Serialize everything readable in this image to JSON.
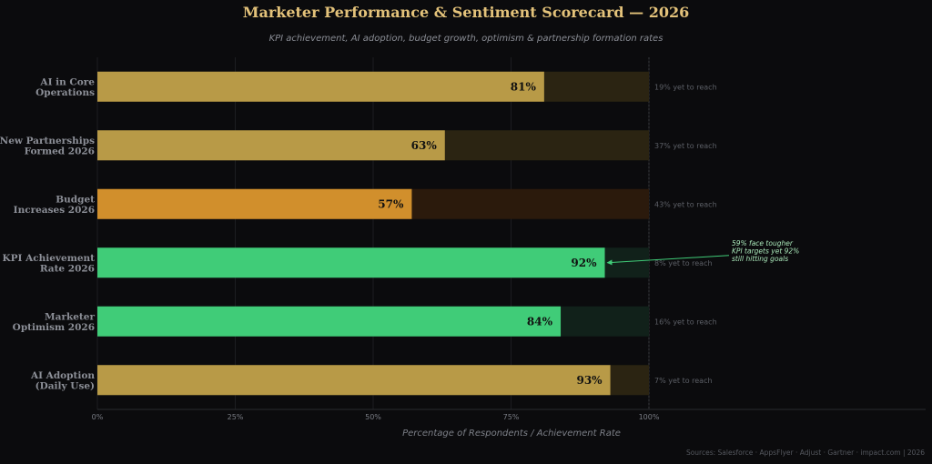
{
  "chart_data": {
    "type": "bar",
    "orientation": "horizontal",
    "title": "Marketer Performance & Sentiment Scorecard — 2026",
    "subtitle": "KPI achievement, AI adoption, budget growth, optimism & partnership formation rates",
    "xlabel": "Percentage of Respondents / Achievement Rate",
    "xlim": [
      0,
      100
    ],
    "xticks": [
      "0%",
      "25%",
      "50%",
      "75%",
      "100%"
    ],
    "grid": true,
    "categories": [
      {
        "lines": [
          "AI in Core",
          "Operations"
        ],
        "value": 81,
        "label": "81%",
        "remaining": "19% yet to reach",
        "color": "#b89a47",
        "track": "#2b2412"
      },
      {
        "lines": [
          "New Partnerships",
          "Formed 2026"
        ],
        "value": 63,
        "label": "63%",
        "remaining": "37% yet to reach",
        "color": "#b89a47",
        "track": "#2b2412"
      },
      {
        "lines": [
          "Budget",
          "Increases 2026"
        ],
        "value": 57,
        "label": "57%",
        "remaining": "43% yet to reach",
        "color": "#d18f2c",
        "track": "#2b1a0c"
      },
      {
        "lines": [
          "KPI Achievement",
          "Rate 2026"
        ],
        "value": 92,
        "label": "92%",
        "remaining": "8% yet to reach",
        "color": "#40cc78",
        "track": "#11211a"
      },
      {
        "lines": [
          "Marketer",
          "Optimism 2026"
        ],
        "value": 84,
        "label": "84%",
        "remaining": "16% yet to reach",
        "color": "#40cc78",
        "track": "#11211a"
      },
      {
        "lines": [
          "AI Adoption",
          "(Daily Use)"
        ],
        "value": 93,
        "label": "93%",
        "remaining": "7% yet to reach",
        "color": "#b89a47",
        "track": "#2b2412"
      }
    ],
    "annotation": {
      "lines": [
        "59% face tougher",
        "KPI targets yet 92%",
        "still hitting goals"
      ],
      "target_index": 3
    }
  },
  "source": "Sources: Salesforce · AppsFlyer · Adjust · Gartner · impact.com  |  2026"
}
